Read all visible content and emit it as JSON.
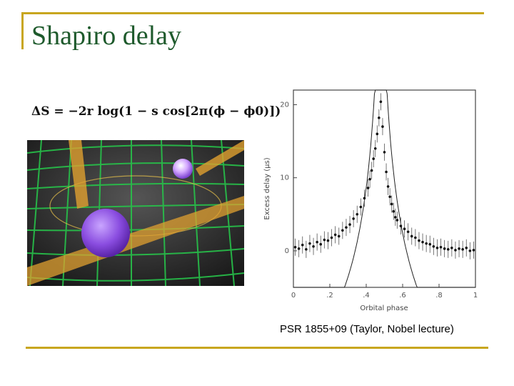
{
  "slide": {
    "title": "Shapiro delay",
    "formula": "ΔS = −2r log(1 − s cos[2π(ϕ − ϕ0)])",
    "caption": "PSR 1855+09 (Taylor, Nobel lecture)",
    "accent_color": "#c8a61f",
    "title_color": "#1e5a2c"
  },
  "chart_data": {
    "type": "scatter",
    "xlabel": "Orbital phase",
    "ylabel": "Excess delay (μs)",
    "xlim": [
      0,
      1
    ],
    "ylim": [
      -5,
      22
    ],
    "xticks": [
      "0",
      ".2",
      ".4",
      ".6",
      ".8",
      "1"
    ],
    "yticks": [
      "0",
      "10",
      "20"
    ],
    "series": [
      {
        "x": [
          0.01,
          0.03,
          0.05,
          0.07,
          0.09,
          0.11,
          0.13,
          0.15,
          0.17,
          0.19,
          0.21,
          0.23,
          0.25,
          0.27,
          0.29,
          0.31,
          0.33,
          0.35,
          0.37,
          0.39,
          0.41,
          0.42,
          0.43,
          0.44,
          0.45,
          0.46,
          0.47,
          0.48,
          0.49,
          0.5,
          0.51,
          0.52,
          0.53,
          0.54,
          0.55,
          0.56,
          0.57,
          0.59,
          0.61,
          0.63,
          0.65,
          0.67,
          0.69,
          0.71,
          0.73,
          0.75,
          0.77,
          0.79,
          0.81,
          0.83,
          0.85,
          0.87,
          0.89,
          0.91,
          0.93,
          0.95,
          0.97,
          0.99
        ],
        "y": [
          0.5,
          0.3,
          0.8,
          0.2,
          1.0,
          0.6,
          1.2,
          0.9,
          1.5,
          1.4,
          1.8,
          2.2,
          2.0,
          2.8,
          3.2,
          3.6,
          4.4,
          5.0,
          6.0,
          7.2,
          8.6,
          9.8,
          11.0,
          12.6,
          14.0,
          16.0,
          18.2,
          20.4,
          17.0,
          13.5,
          10.8,
          8.8,
          7.4,
          6.4,
          5.4,
          4.6,
          4.2,
          3.4,
          3.0,
          2.6,
          2.0,
          1.8,
          1.4,
          1.2,
          1.0,
          0.9,
          0.6,
          0.4,
          0.5,
          0.3,
          0.2,
          0.4,
          0.1,
          0.3,
          0.2,
          0.4,
          0.0,
          0.1
        ]
      }
    ]
  }
}
